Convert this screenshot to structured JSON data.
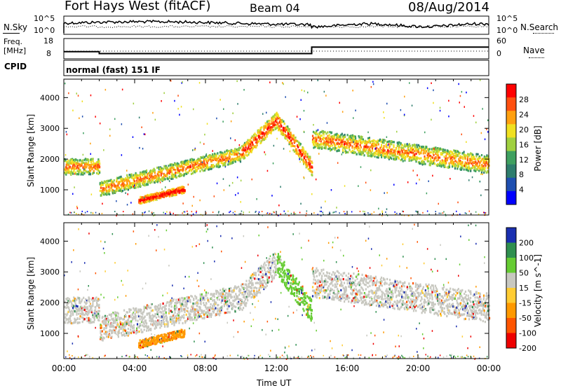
{
  "header": {
    "title": "Fort Hays West (fitACF)",
    "beam": "Beam 04",
    "date": "08/Aug/2014"
  },
  "noise_panel": {
    "left_label": "N.Sky",
    "left_ticks": [
      "10^5",
      "10^0"
    ],
    "right_ticks": [
      "10^5",
      "10^0"
    ],
    "right_label": "N.Search"
  },
  "freq_panel": {
    "left_label_line1": "Freq.",
    "left_label_line2": "[MHz]",
    "left_ticks": [
      "18",
      "8"
    ],
    "right_ticks": [
      "60",
      "0"
    ],
    "right_label": "Nave",
    "freq_steps": [
      [
        0,
        11.5
      ],
      [
        2.0,
        11.5
      ],
      [
        2.0,
        10.6
      ],
      [
        14.0,
        10.6
      ],
      [
        14.0,
        13.8
      ],
      [
        24,
        13.8
      ]
    ]
  },
  "cpid_panel": {
    "label": "CPID",
    "text": "normal (fast) 151 IF"
  },
  "chart_data": [
    {
      "type": "heatmap",
      "panel": "power",
      "ylabel": "Slant Range [km]",
      "yticks": [
        "1000",
        "2000",
        "3000",
        "4000"
      ],
      "ylim": [
        180,
        4600
      ],
      "xlim": [
        0,
        24
      ],
      "colorbar_label": "Power [dB]",
      "colorbar_ticks": [
        "4",
        "8",
        "12",
        "16",
        "20",
        "24",
        "28"
      ],
      "colors": [
        "#0000ff",
        "#1f4fb0",
        "#2e7d6d",
        "#3fa060",
        "#a0d040",
        "#f0e020",
        "#ffa010",
        "#ff5010",
        "#ff0000"
      ],
      "bands": [
        {
          "t0": 0.0,
          "t1": 2.0,
          "r0": 1780,
          "r1": 1800,
          "w": 260,
          "c": 4
        },
        {
          "t0": 2.0,
          "t1": 10.0,
          "r0": 1050,
          "r1": 2200,
          "w": 240,
          "c": 4
        },
        {
          "t0": 10.0,
          "t1": 12.0,
          "r0": 2200,
          "r1": 3300,
          "w": 260,
          "c": 5
        },
        {
          "t0": 12.0,
          "t1": 14.0,
          "r0": 3300,
          "r1": 1750,
          "w": 260,
          "c": 5
        },
        {
          "t0": 14.0,
          "t1": 24.0,
          "r0": 2700,
          "r1": 1850,
          "w": 300,
          "c": 4
        },
        {
          "t0": 4.2,
          "t1": 6.8,
          "r0": 680,
          "r1": 1050,
          "w": 110,
          "c": 6
        }
      ]
    },
    {
      "type": "heatmap",
      "panel": "velocity",
      "ylabel": "Slant Range [km]",
      "yticks": [
        "1000",
        "2000",
        "3000",
        "4000"
      ],
      "ylim": [
        180,
        4600
      ],
      "xlim": [
        0,
        24
      ],
      "xticks": [
        "00:00",
        "04:00",
        "08:00",
        "12:00",
        "16:00",
        "20:00",
        "00:00"
      ],
      "xlabel": "Time UT",
      "colorbar_label": "Velocity [m s^-1]",
      "colorbar_ticks": [
        "200",
        "100",
        "50",
        "15",
        "-15",
        "-50",
        "-100",
        "-200"
      ],
      "colors": [
        "#1a2fb0",
        "#2f8f4f",
        "#66cc33",
        "#c8c8c0",
        "#ffcc33",
        "#ff9900",
        "#ff5500",
        "#ee0000"
      ],
      "bands": [
        {
          "t0": 0.0,
          "t1": 2.0,
          "r0": 1780,
          "r1": 1800,
          "w": 420,
          "c": 3
        },
        {
          "t0": 2.0,
          "t1": 10.0,
          "r0": 1200,
          "r1": 2200,
          "w": 420,
          "c": 3
        },
        {
          "t0": 10.0,
          "t1": 12.0,
          "r0": 2200,
          "r1": 3300,
          "w": 420,
          "c": 3
        },
        {
          "t0": 12.0,
          "t1": 14.0,
          "r0": 3300,
          "r1": 1750,
          "w": 380,
          "c": 2
        },
        {
          "t0": 14.0,
          "t1": 24.0,
          "r0": 2700,
          "r1": 1850,
          "w": 480,
          "c": 3
        },
        {
          "t0": 4.2,
          "t1": 6.8,
          "r0": 680,
          "r1": 1050,
          "w": 130,
          "c": 5
        }
      ]
    }
  ]
}
